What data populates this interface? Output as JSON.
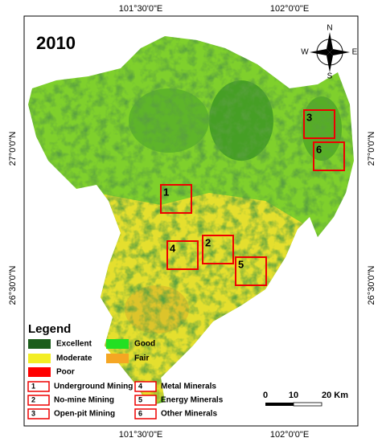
{
  "title": "2010",
  "coordinates": {
    "top": [
      "101°30'0\"E",
      "102°0'0\"E"
    ],
    "bottom": [
      "101°30'0\"E",
      "102°0'0\"E"
    ],
    "left": [
      "27°0'0\"N",
      "26°30'0\"N"
    ],
    "right": [
      "27°0'0\"N",
      "26°30'0\"N"
    ]
  },
  "compass": {
    "n": "N",
    "s": "S",
    "e": "E",
    "w": "W"
  },
  "zones": [
    "1",
    "2",
    "3",
    "4",
    "5",
    "6"
  ],
  "legend": {
    "title": "Legend",
    "classes": [
      {
        "name": "Excellent",
        "color": "#1b5e1b"
      },
      {
        "name": "Good",
        "color": "#22e022"
      },
      {
        "name": "Moderate",
        "color": "#f3ee25"
      },
      {
        "name": "Fair",
        "color": "#f5a623"
      },
      {
        "name": "Poor",
        "color": "#ff0000"
      }
    ],
    "zone_types": [
      {
        "number": "1",
        "name": "Underground Mining"
      },
      {
        "number": "2",
        "name": "No-mine Mining"
      },
      {
        "number": "3",
        "name": "Open-pit Mining"
      },
      {
        "number": "4",
        "name": "Metal Minerals"
      },
      {
        "number": "5",
        "name": "Energy Minerals"
      },
      {
        "number": "6",
        "name": "Other Minerals"
      }
    ]
  },
  "scale_bar": {
    "labels": [
      "0",
      "10",
      "20 Km"
    ]
  }
}
